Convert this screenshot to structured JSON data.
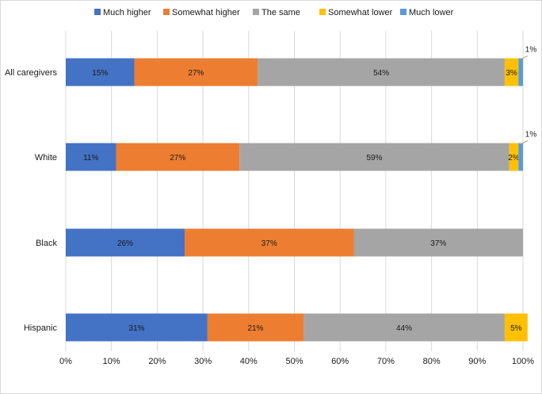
{
  "chart_data": {
    "type": "bar",
    "orientation": "horizontal",
    "stacked": true,
    "categories": [
      "All caregivers",
      "White",
      "Black",
      "Hispanic"
    ],
    "series": [
      {
        "name": "Much higher",
        "color": "#4472C4",
        "values": [
          15,
          11,
          26,
          31
        ],
        "labels": [
          "15%",
          "11%",
          "26%",
          "31%"
        ]
      },
      {
        "name": "Somewhat higher",
        "color": "#ED7D31",
        "values": [
          27,
          27,
          37,
          21
        ],
        "labels": [
          "27%",
          "27%",
          "37%",
          "21%"
        ]
      },
      {
        "name": "The same",
        "color": "#A5A5A5",
        "values": [
          54,
          59,
          37,
          44
        ],
        "labels": [
          "54%",
          "59%",
          "37%",
          "44%"
        ]
      },
      {
        "name": "Somewhat lower",
        "color": "#FFC000",
        "values": [
          3,
          2,
          0,
          5
        ],
        "labels": [
          "3%",
          "2%",
          "",
          "5%"
        ]
      },
      {
        "name": "Much lower",
        "color": "#5B9BD5",
        "values": [
          1,
          1,
          0,
          0
        ],
        "labels": [
          "1%",
          "1%",
          "",
          ""
        ]
      }
    ],
    "xlim": [
      0,
      100
    ],
    "xticks": [
      "0%",
      "10%",
      "20%",
      "30%",
      "40%",
      "50%",
      "60%",
      "70%",
      "80%",
      "90%",
      "100%"
    ],
    "grid": true,
    "legend": "top"
  }
}
